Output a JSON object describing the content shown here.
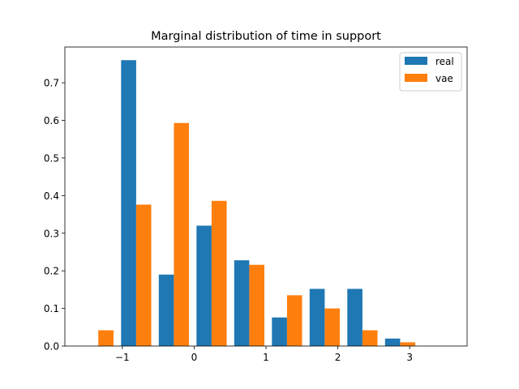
{
  "chart_data": {
    "type": "bar",
    "title": "Marginal distribution of time in support",
    "xlabel": "",
    "ylabel": "",
    "xlim": [
      -1.8,
      3.8
    ],
    "ylim": [
      0,
      0.795
    ],
    "xticks": [
      -1,
      0,
      1,
      2,
      3
    ],
    "xtick_labels": [
      "−1",
      "0",
      "1",
      "2",
      "3"
    ],
    "yticks": [
      0.0,
      0.1,
      0.2,
      0.3,
      0.4,
      0.5,
      0.6,
      0.7
    ],
    "ytick_labels": [
      "0.0",
      "0.1",
      "0.2",
      "0.3",
      "0.4",
      "0.5",
      "0.6",
      "0.7"
    ],
    "bin_edges": [
      -1.6,
      -1.07,
      -0.545,
      -0.02,
      0.505,
      1.03,
      1.555,
      2.08,
      2.605,
      3.13,
      3.655
    ],
    "legend_position": "top-right",
    "series": [
      {
        "name": "real",
        "color": "#1f77b4",
        "values": [
          0.0,
          0.76,
          0.19,
          0.32,
          0.228,
          0.076,
          0.152,
          0.152,
          0.02,
          0.0
        ]
      },
      {
        "name": "vae",
        "color": "#ff7f0e",
        "values": [
          0.042,
          0.376,
          0.593,
          0.386,
          0.216,
          0.135,
          0.1,
          0.042,
          0.01,
          0.0
        ]
      }
    ]
  }
}
